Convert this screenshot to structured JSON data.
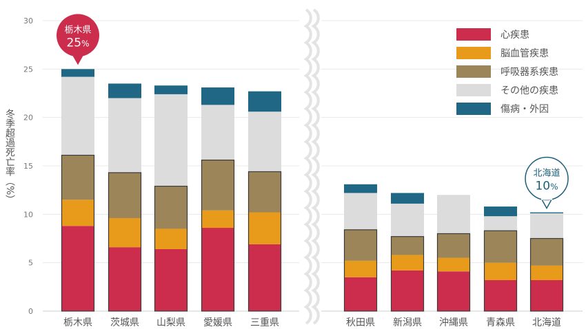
{
  "chart_data": {
    "type": "bar",
    "stacked": true,
    "ylabel": "冬季超過死亡率（%）",
    "ylim": [
      0,
      30
    ],
    "yticks": [
      0,
      5,
      10,
      15,
      20,
      25,
      30
    ],
    "grid": true,
    "legend_position": "top-right",
    "axis_break_between": [
      "三重県",
      "秋田県"
    ],
    "categories": [
      "栃木県",
      "茨城県",
      "山梨県",
      "愛媛県",
      "三重県",
      "秋田県",
      "新潟県",
      "沖縄県",
      "青森県",
      "北海道"
    ],
    "series": [
      {
        "name": "心疾患",
        "color": "#cc2d4c",
        "values": [
          8.8,
          6.6,
          6.4,
          8.6,
          6.9,
          3.5,
          4.2,
          4.1,
          3.2,
          3.2
        ]
      },
      {
        "name": "脳血管疾患",
        "color": "#e89a1a",
        "values": [
          2.7,
          3.0,
          2.1,
          1.8,
          3.3,
          1.7,
          1.6,
          1.4,
          1.8,
          1.5
        ]
      },
      {
        "name": "呼吸器系疾患",
        "color": "#9c8558",
        "values": [
          4.6,
          4.7,
          4.4,
          5.2,
          4.2,
          3.2,
          1.9,
          2.5,
          3.3,
          2.8
        ]
      },
      {
        "name": "その他の疾患",
        "color": "#dcdcdc",
        "values": [
          8.1,
          7.7,
          9.5,
          5.7,
          6.2,
          3.8,
          3.4,
          4.0,
          1.5,
          2.6
        ]
      },
      {
        "name": "傷病・外因",
        "color": "#1f6784",
        "values": [
          0.8,
          1.5,
          0.9,
          1.8,
          2.1,
          0.9,
          1.1,
          0.0,
          1.0,
          0.1
        ]
      }
    ],
    "annotations": [
      {
        "category": "栃木県",
        "name": "栃木県",
        "value_text": "25",
        "unit": "%",
        "color": "#cc2d4c"
      },
      {
        "category": "北海道",
        "name": "北海道",
        "value_text": "10",
        "unit": "%",
        "color": "#1b5f7b"
      }
    ]
  }
}
